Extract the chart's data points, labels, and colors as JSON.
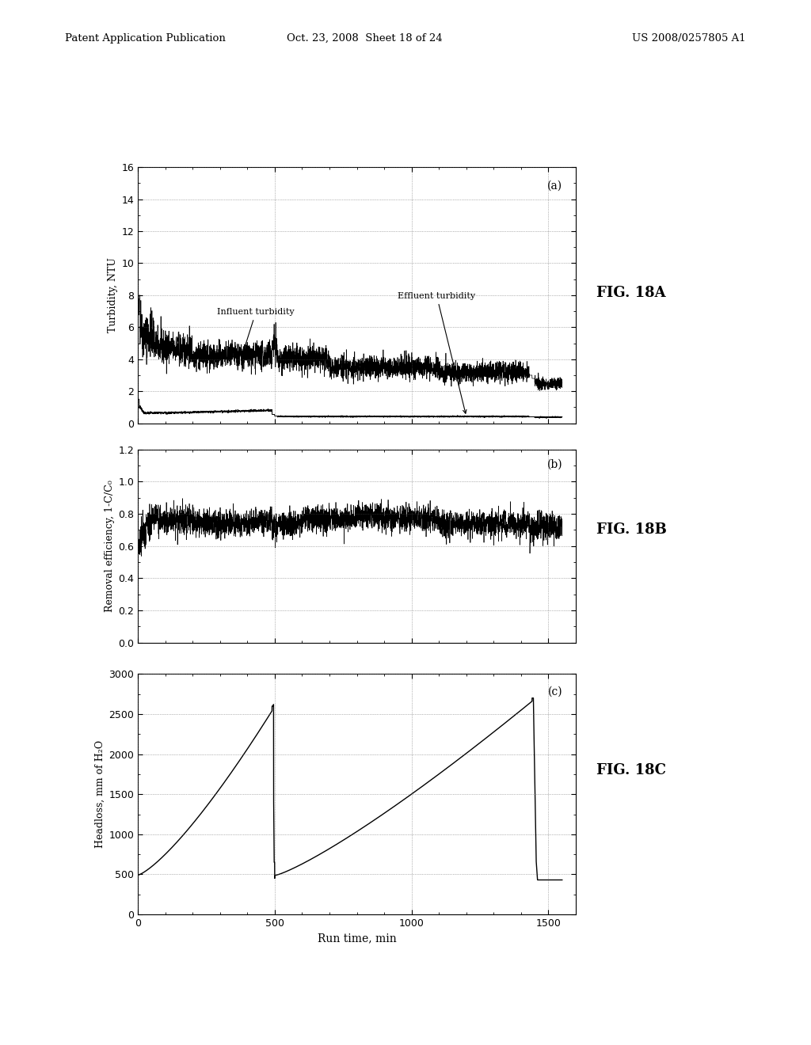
{
  "header_left": "Patent Application Publication",
  "header_center": "Oct. 23, 2008  Sheet 18 of 24",
  "header_right": "US 2008/0257805 A1",
  "fig_labels": [
    "(a)",
    "(b)",
    "(c)"
  ],
  "fig_names": [
    "FIG. 18A",
    "FIG. 18B",
    "FIG. 18C"
  ],
  "xlabel": "Run time, min",
  "ylabel_a": "Turbidity, NTU",
  "ylabel_b": "Removal efficiency, 1-C/C₀",
  "ylabel_c": "Headloss, mm of H₂O",
  "xlim": [
    0,
    1600
  ],
  "xticks": [
    0,
    500,
    1000,
    1500
  ],
  "ylim_a": [
    0,
    16
  ],
  "yticks_a": [
    0,
    2,
    4,
    6,
    8,
    10,
    12,
    14,
    16
  ],
  "ylim_b": [
    0.0,
    1.2
  ],
  "yticks_b": [
    0.0,
    0.2,
    0.4,
    0.6,
    0.8,
    1.0,
    1.2
  ],
  "ylim_c": [
    0,
    3000
  ],
  "yticks_c": [
    0,
    500,
    1000,
    1500,
    2000,
    2500,
    3000
  ],
  "background_color": "#ffffff",
  "line_color": "#000000",
  "grid_color": "#555555",
  "annotation_influent": "Influent turbidity",
  "annotation_effluent": "Effluent turbidity"
}
